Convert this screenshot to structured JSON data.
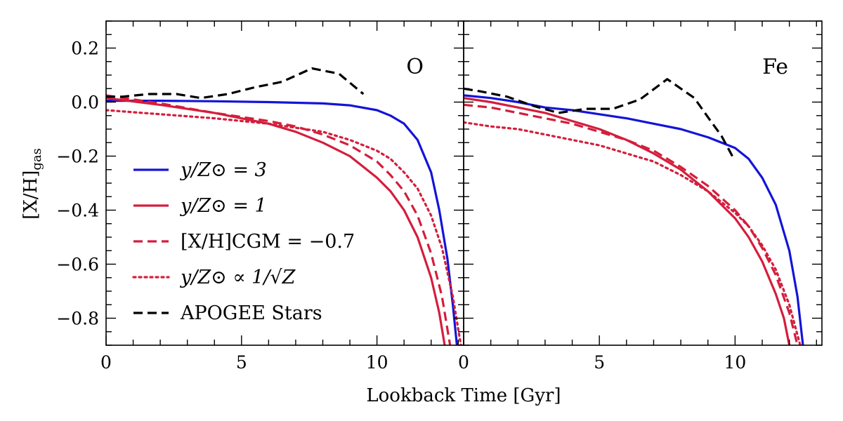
{
  "chart_data": {
    "type": "line",
    "xlabel": "Lookback Time [Gyr]",
    "ylabel": "[X/H]",
    "ylabel_subscript": "gas",
    "xlim": [
      0,
      13.2
    ],
    "ylim": [
      -0.9,
      0.3
    ],
    "xticks": [
      0,
      5,
      10
    ],
    "xtick_labels": [
      "0",
      "5",
      "10"
    ],
    "yticks": [
      0.2,
      0.0,
      -0.2,
      -0.4,
      -0.6,
      -0.8
    ],
    "ytick_labels": [
      "0.2",
      "0.0",
      "−0.2",
      "−0.4",
      "−0.6",
      "−0.8"
    ],
    "legend": {
      "location": "lower-left of left panel",
      "entries": [
        {
          "series": "y3",
          "label": "y/Z⊙ = 3"
        },
        {
          "series": "y1",
          "label": "y/Z⊙ = 1"
        },
        {
          "series": "cgm",
          "label": "[X/H]CGM = −0.7"
        },
        {
          "series": "sqrt",
          "label": "y/Z⊙ ∝ 1/√Z"
        },
        {
          "series": "apogee",
          "label": "APOGEE Stars"
        }
      ]
    },
    "series_styles": {
      "y3": {
        "color": "#1414d8",
        "dash": "solid"
      },
      "y1": {
        "color": "#d41e3c",
        "dash": "solid"
      },
      "cgm": {
        "color": "#d41e3c",
        "dash": "dashed"
      },
      "sqrt": {
        "color": "#d41e3c",
        "dash": "dotted"
      },
      "apogee": {
        "color": "#000000",
        "dash": "dashed"
      }
    },
    "panels": [
      {
        "label": "O",
        "series": [
          {
            "id": "y3",
            "x": [
              0,
              2,
              4,
              6,
              8,
              9,
              10,
              10.5,
              11,
              11.5,
              12,
              12.3,
              12.6,
              12.8,
              12.95
            ],
            "y": [
              0.005,
              0.005,
              0.003,
              0.0,
              -0.005,
              -0.012,
              -0.03,
              -0.05,
              -0.08,
              -0.14,
              -0.26,
              -0.4,
              -0.58,
              -0.75,
              -0.9
            ]
          },
          {
            "id": "y1",
            "x": [
              0,
              2,
              4,
              6,
              7,
              8,
              9,
              10,
              10.5,
              11,
              11.5,
              12,
              12.3,
              12.5
            ],
            "y": [
              0.015,
              -0.01,
              -0.04,
              -0.08,
              -0.11,
              -0.15,
              -0.2,
              -0.28,
              -0.33,
              -0.4,
              -0.5,
              -0.65,
              -0.78,
              -0.9
            ]
          },
          {
            "id": "cgm",
            "x": [
              0,
              2,
              4,
              6,
              7,
              8,
              9,
              10,
              10.5,
              11,
              11.5,
              12,
              12.4,
              12.7
            ],
            "y": [
              0.025,
              -0.005,
              -0.04,
              -0.07,
              -0.09,
              -0.12,
              -0.16,
              -0.22,
              -0.27,
              -0.33,
              -0.42,
              -0.56,
              -0.72,
              -0.9
            ]
          },
          {
            "id": "sqrt",
            "x": [
              0,
              2,
              4,
              6,
              8,
              9,
              10,
              10.5,
              11,
              11.5,
              12,
              12.4,
              12.8,
              13.1
            ],
            "y": [
              -0.03,
              -0.045,
              -0.06,
              -0.08,
              -0.11,
              -0.14,
              -0.18,
              -0.21,
              -0.26,
              -0.32,
              -0.42,
              -0.54,
              -0.72,
              -0.9
            ]
          },
          {
            "id": "apogee",
            "x": [
              0,
              0.6,
              1.6,
              2.6,
              3.5,
              4.5,
              5.5,
              6.5,
              7.6,
              8.6,
              9.5
            ],
            "y": [
              0.02,
              0.02,
              0.03,
              0.03,
              0.015,
              0.03,
              0.055,
              0.075,
              0.125,
              0.105,
              0.03
            ]
          }
        ]
      },
      {
        "label": "Fe",
        "series": [
          {
            "id": "y3",
            "x": [
              0,
              1,
              2,
              3,
              4,
              5,
              6,
              7,
              8,
              9,
              10,
              10.5,
              11,
              11.5,
              12,
              12.3,
              12.5
            ],
            "y": [
              0.025,
              0.015,
              0.0,
              -0.02,
              -0.03,
              -0.045,
              -0.06,
              -0.08,
              -0.1,
              -0.13,
              -0.17,
              -0.21,
              -0.28,
              -0.38,
              -0.55,
              -0.72,
              -0.9
            ]
          },
          {
            "id": "y1",
            "x": [
              0,
              1,
              2,
              3,
              4,
              5,
              6,
              7,
              8,
              9,
              10,
              10.5,
              11,
              11.5,
              11.8,
              12.0
            ],
            "y": [
              0.015,
              0.0,
              -0.02,
              -0.04,
              -0.07,
              -0.1,
              -0.14,
              -0.19,
              -0.25,
              -0.33,
              -0.43,
              -0.5,
              -0.59,
              -0.71,
              -0.8,
              -0.9
            ]
          },
          {
            "id": "cgm",
            "x": [
              0,
              1,
              2,
              3,
              4,
              5,
              6,
              7,
              8,
              9,
              10,
              10.5,
              11,
              11.5,
              12,
              12.3
            ],
            "y": [
              -0.01,
              -0.02,
              -0.04,
              -0.06,
              -0.08,
              -0.11,
              -0.14,
              -0.18,
              -0.24,
              -0.31,
              -0.4,
              -0.46,
              -0.54,
              -0.64,
              -0.78,
              -0.9
            ]
          },
          {
            "id": "sqrt",
            "x": [
              0,
              1,
              2,
              3,
              4,
              5,
              6,
              7,
              8,
              9,
              10,
              10.5,
              11,
              11.5,
              12,
              12.4
            ],
            "y": [
              -0.075,
              -0.09,
              -0.1,
              -0.12,
              -0.14,
              -0.16,
              -0.19,
              -0.22,
              -0.27,
              -0.33,
              -0.41,
              -0.46,
              -0.53,
              -0.62,
              -0.75,
              -0.9
            ]
          },
          {
            "id": "apogee",
            "x": [
              0,
              0.6,
              1.6,
              2.6,
              3.5,
              4.5,
              5.5,
              6.5,
              7.5,
              8.5,
              9.1,
              9.5,
              9.9
            ],
            "y": [
              0.05,
              0.04,
              0.02,
              -0.015,
              -0.04,
              -0.025,
              -0.025,
              0.01,
              0.085,
              0.015,
              -0.07,
              -0.125,
              -0.2
            ]
          }
        ]
      }
    ]
  }
}
